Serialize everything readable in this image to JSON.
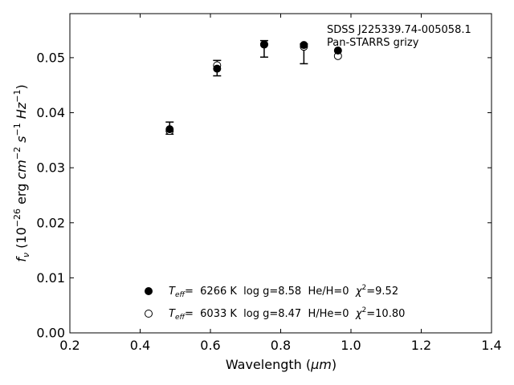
{
  "chart_data": {
    "type": "scatter",
    "xlabel_text": "Wavelength (",
    "xlabel_unit": "μm",
    "xlabel_close": ")",
    "ylabel": {
      "f": "f",
      "nu": "ν",
      "open": " (10",
      "exp26": "−26",
      "erg": " erg ",
      "cm": "cm",
      "exp2": "−2",
      "s": "s",
      "exp1a": "−1",
      "hz": "Hz",
      "exp1b": "−1",
      "close": ")"
    },
    "xlim": [
      0.2,
      1.4
    ],
    "ylim": [
      0.0,
      0.058
    ],
    "xticks": [
      0.2,
      0.4,
      0.6,
      0.8,
      1.0,
      1.2,
      1.4
    ],
    "xtick_labels": [
      "0.2",
      "0.4",
      "0.6",
      "0.8",
      "1.0",
      "1.2",
      "1.4"
    ],
    "yticks": [
      0.0,
      0.01,
      0.02,
      0.03,
      0.04,
      0.05
    ],
    "ytick_labels": [
      "0.00",
      "0.01",
      "0.02",
      "0.03",
      "0.04",
      "0.05"
    ],
    "annotation": [
      "SDSS J225339.74-005058.1",
      "Pan-STARRS grizy"
    ],
    "observed": [
      {
        "x": 0.484,
        "y": 0.0372,
        "err": 0.0011
      },
      {
        "x": 0.619,
        "y": 0.0481,
        "err": 0.0014
      },
      {
        "x": 0.753,
        "y": 0.0516,
        "err": 0.0015
      },
      {
        "x": 0.866,
        "y": 0.0507,
        "err": 0.0018
      }
    ],
    "series": [
      {
        "marker": "filled",
        "x": [
          0.484,
          0.619,
          0.753,
          0.866,
          0.963
        ],
        "y": [
          0.037,
          0.048,
          0.0524,
          0.0523,
          0.0513
        ]
      },
      {
        "marker": "open",
        "x": [
          0.484,
          0.619,
          0.753,
          0.866,
          0.963
        ],
        "y": [
          0.0367,
          0.0486,
          0.0524,
          0.052,
          0.0503
        ]
      }
    ],
    "legend": [
      {
        "marker": "filled",
        "teff_symbol": "T",
        "teff_sub": "eff",
        "text": "=  6266 K  log g=8.58  He/H=0  ",
        "chi": "χ",
        "chi_exp": "2",
        "chi_val": "=9.52"
      },
      {
        "marker": "open",
        "teff_symbol": "T",
        "teff_sub": "eff",
        "text": "=  6033 K  log g=8.47  H/He=0  ",
        "chi": "χ",
        "chi_exp": "2",
        "chi_val": "=10.80"
      }
    ],
    "colors": {
      "axis": "#000000",
      "marker": "#000000",
      "background": "#ffffff"
    },
    "grid": false,
    "legend_position": "bottom-center"
  }
}
